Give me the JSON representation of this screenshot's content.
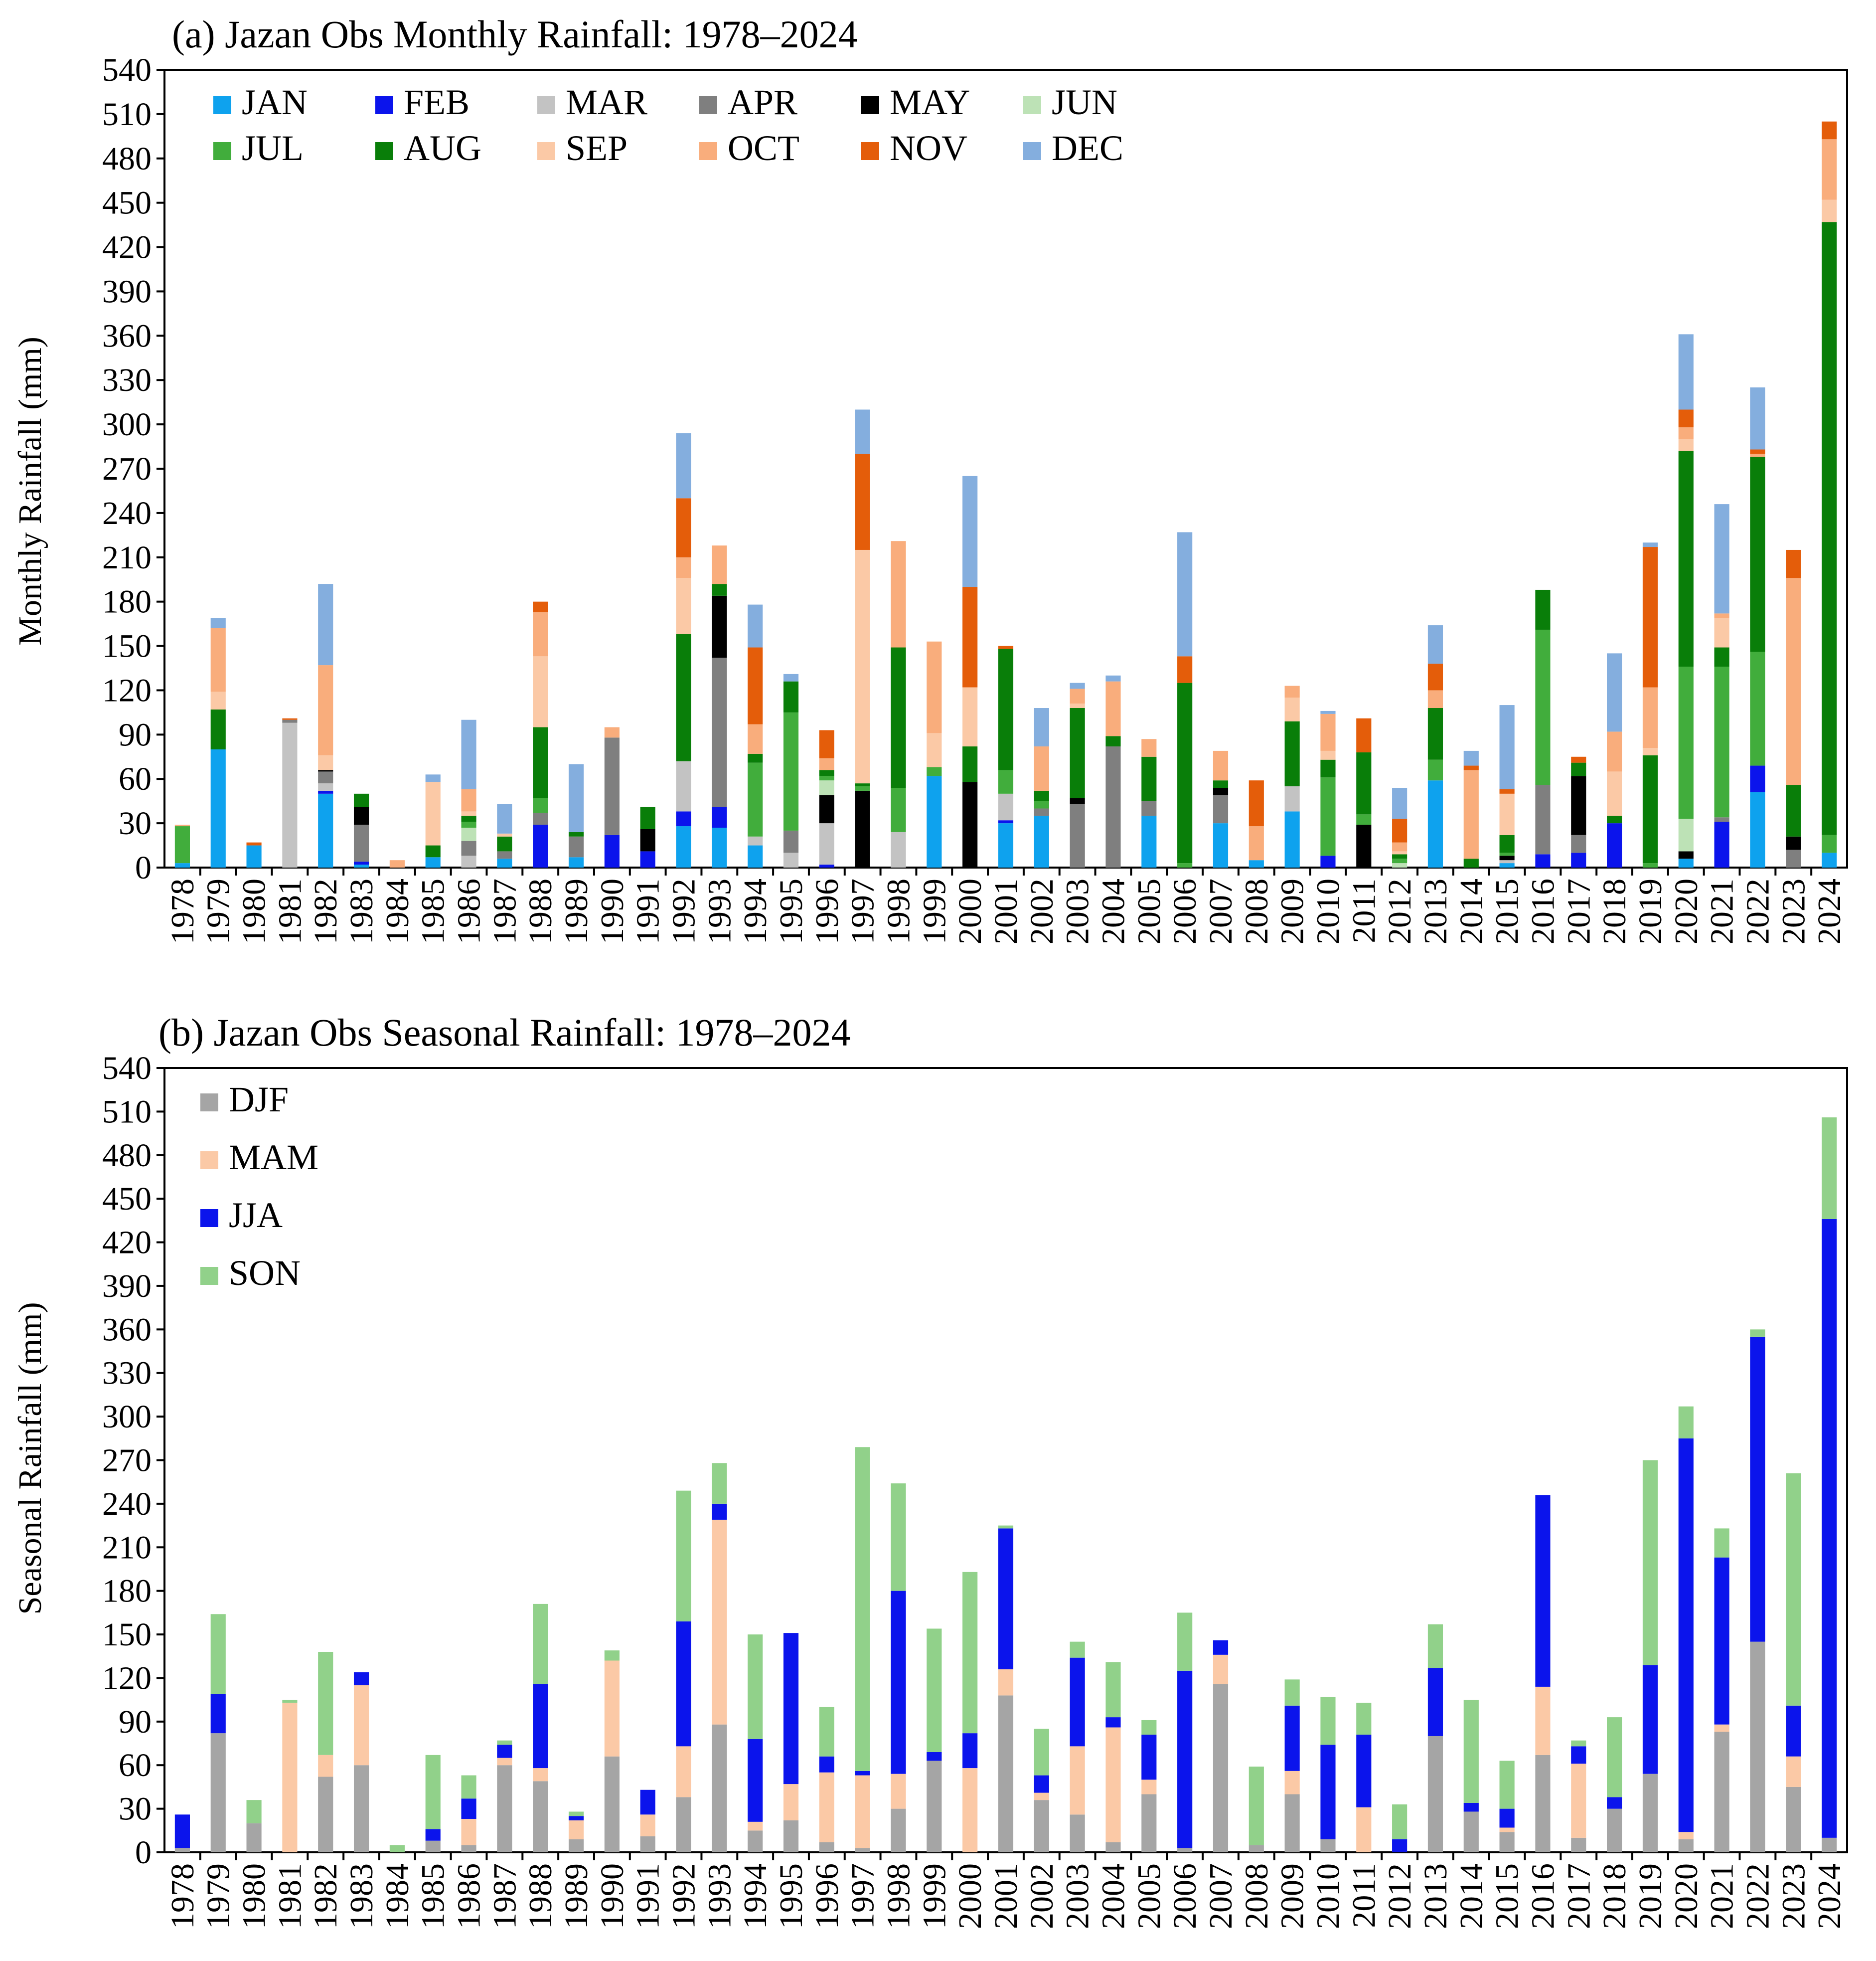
{
  "chart_data": [
    {
      "type": "bar",
      "stacked": true,
      "title": "(a) Jazan Obs Monthly Rainfall: 1978–2024",
      "xlabel": "",
      "ylabel": "Monthly Rainfall (mm)",
      "ylim": [
        0,
        540
      ],
      "yticks": [
        0,
        30,
        60,
        90,
        120,
        150,
        180,
        210,
        240,
        270,
        300,
        330,
        360,
        390,
        420,
        450,
        480,
        510,
        540
      ],
      "legend_position": "top-left",
      "categories": [
        "1978",
        "1979",
        "1980",
        "1981",
        "1982",
        "1983",
        "1984",
        "1985",
        "1986",
        "1987",
        "1988",
        "1989",
        "1990",
        "1991",
        "1992",
        "1993",
        "1994",
        "1995",
        "1996",
        "1997",
        "1998",
        "1999",
        "2000",
        "2001",
        "2002",
        "2003",
        "2004",
        "2005",
        "2006",
        "2007",
        "2008",
        "2009",
        "2010",
        "2011",
        "2012",
        "2013",
        "2014",
        "2015",
        "2016",
        "2017",
        "2018",
        "2019",
        "2020",
        "2021",
        "2022",
        "2023",
        "2024"
      ],
      "series": [
        {
          "name": "JAN",
          "color": "#0ea2ee",
          "values": [
            3,
            80,
            15,
            0,
            50,
            2,
            0,
            7,
            0,
            6,
            0,
            7,
            0,
            0,
            28,
            27,
            15,
            0,
            0,
            0,
            0,
            62,
            0,
            30,
            35,
            0,
            0,
            35,
            0,
            30,
            5,
            38,
            0,
            0,
            0,
            59,
            0,
            3,
            0,
            0,
            0,
            0,
            6,
            0,
            51,
            0,
            10
          ]
        },
        {
          "name": "FEB",
          "color": "#0b14ec",
          "values": [
            0,
            0,
            0,
            0,
            2,
            2,
            0,
            0,
            0,
            0,
            29,
            0,
            22,
            11,
            10,
            14,
            0,
            0,
            2,
            0,
            0,
            0,
            0,
            2,
            0,
            0,
            0,
            0,
            0,
            0,
            0,
            0,
            8,
            0,
            0,
            0,
            0,
            0,
            9,
            10,
            30,
            0,
            0,
            31,
            18,
            0,
            0
          ]
        },
        {
          "name": "MAR",
          "color": "#c3c3c3",
          "values": [
            0,
            0,
            0,
            98,
            5,
            0,
            0,
            0,
            8,
            0,
            0,
            0,
            0,
            0,
            34,
            0,
            6,
            10,
            28,
            0,
            24,
            0,
            0,
            18,
            0,
            0,
            0,
            0,
            0,
            0,
            0,
            17,
            0,
            0,
            0,
            0,
            0,
            2,
            0,
            0,
            0,
            0,
            0,
            0,
            0,
            0,
            0
          ]
        },
        {
          "name": "APR",
          "color": "#7f7f7f",
          "values": [
            0,
            0,
            0,
            2,
            8,
            25,
            0,
            0,
            10,
            5,
            8,
            14,
            66,
            0,
            0,
            101,
            0,
            15,
            0,
            0,
            0,
            0,
            0,
            0,
            5,
            43,
            82,
            10,
            0,
            19,
            0,
            0,
            0,
            0,
            0,
            0,
            0,
            0,
            47,
            12,
            0,
            0,
            0,
            3,
            0,
            12,
            0
          ]
        },
        {
          "name": "MAY",
          "color": "#000000",
          "values": [
            0,
            0,
            0,
            0,
            1,
            12,
            0,
            0,
            0,
            0,
            0,
            0,
            0,
            15,
            0,
            42,
            0,
            0,
            19,
            52,
            0,
            0,
            58,
            0,
            0,
            4,
            0,
            0,
            0,
            5,
            0,
            0,
            0,
            29,
            0,
            0,
            0,
            3,
            0,
            40,
            0,
            0,
            5,
            0,
            0,
            9,
            0
          ]
        },
        {
          "name": "JUN",
          "color": "#bde2b6",
          "values": [
            0,
            0,
            0,
            0,
            0,
            0,
            0,
            0,
            9,
            0,
            0,
            0,
            0,
            0,
            0,
            0,
            0,
            0,
            10,
            0,
            0,
            0,
            0,
            0,
            0,
            0,
            0,
            0,
            0,
            0,
            0,
            0,
            0,
            0,
            3,
            0,
            0,
            0,
            0,
            0,
            0,
            0,
            22,
            0,
            0,
            0,
            0
          ]
        },
        {
          "name": "JUL",
          "color": "#41ad3c",
          "values": [
            25,
            0,
            0,
            0,
            0,
            0,
            0,
            0,
            4,
            0,
            10,
            0,
            0,
            0,
            0,
            0,
            50,
            80,
            3,
            3,
            30,
            6,
            0,
            16,
            5,
            0,
            0,
            0,
            3,
            0,
            0,
            0,
            53,
            7,
            3,
            14,
            0,
            2,
            105,
            0,
            0,
            3,
            103,
            102,
            77,
            0,
            12
          ]
        },
        {
          "name": "AUG",
          "color": "#097e09",
          "values": [
            0,
            27,
            0,
            0,
            0,
            9,
            0,
            8,
            4,
            10,
            48,
            3,
            0,
            15,
            86,
            8,
            6,
            21,
            4,
            2,
            95,
            0,
            24,
            82,
            7,
            61,
            7,
            30,
            122,
            5,
            0,
            44,
            12,
            42,
            3,
            35,
            6,
            12,
            27,
            9,
            5,
            73,
            146,
            13,
            132,
            35,
            415
          ]
        },
        {
          "name": "SEP",
          "color": "#fbc9a6",
          "values": [
            0,
            12,
            0,
            0,
            10,
            0,
            0,
            43,
            3,
            2,
            48,
            0,
            0,
            0,
            38,
            0,
            0,
            0,
            0,
            158,
            0,
            23,
            40,
            0,
            0,
            3,
            0,
            0,
            0,
            0,
            0,
            16,
            6,
            0,
            2,
            0,
            0,
            28,
            0,
            0,
            30,
            5,
            8,
            20,
            0,
            0,
            15
          ]
        },
        {
          "name": "OCT",
          "color": "#f9ad7c",
          "values": [
            1,
            43,
            0,
            0,
            61,
            0,
            5,
            0,
            15,
            0,
            30,
            0,
            7,
            0,
            14,
            26,
            20,
            0,
            8,
            0,
            72,
            62,
            0,
            0,
            30,
            10,
            37,
            12,
            0,
            20,
            23,
            8,
            25,
            0,
            6,
            12,
            60,
            0,
            0,
            0,
            27,
            41,
            8,
            3,
            2,
            140,
            41
          ]
        },
        {
          "name": "NOV",
          "color": "#e45d0a",
          "values": [
            0,
            0,
            2,
            1,
            0,
            0,
            0,
            0,
            0,
            0,
            7,
            0,
            0,
            0,
            40,
            0,
            52,
            0,
            19,
            65,
            0,
            0,
            68,
            2,
            0,
            0,
            0,
            0,
            18,
            0,
            31,
            0,
            0,
            23,
            16,
            18,
            3,
            3,
            0,
            4,
            0,
            95,
            12,
            0,
            3,
            19,
            12
          ]
        },
        {
          "name": "DEC",
          "color": "#84aede",
          "values": [
            0,
            7,
            0,
            0,
            55,
            0,
            0,
            5,
            47,
            20,
            0,
            46,
            0,
            0,
            44,
            0,
            29,
            5,
            0,
            30,
            0,
            0,
            75,
            0,
            26,
            4,
            4,
            0,
            84,
            0,
            0,
            0,
            2,
            0,
            21,
            26,
            10,
            57,
            0,
            0,
            53,
            3,
            51,
            74,
            42,
            0,
            0
          ]
        }
      ]
    },
    {
      "type": "bar",
      "stacked": true,
      "title": "(b) Jazan Obs Seasonal Rainfall: 1978–2024",
      "xlabel": "",
      "ylabel": "Seasonal Rainfall (mm)",
      "ylim": [
        0,
        540
      ],
      "yticks": [
        0,
        30,
        60,
        90,
        120,
        150,
        180,
        210,
        240,
        270,
        300,
        330,
        360,
        390,
        420,
        450,
        480,
        510,
        540
      ],
      "legend_position": "top-left",
      "categories": [
        "1978",
        "1979",
        "1980",
        "1981",
        "1982",
        "1983",
        "1984",
        "1985",
        "1986",
        "1987",
        "1988",
        "1989",
        "1990",
        "1991",
        "1992",
        "1993",
        "1994",
        "1995",
        "1996",
        "1997",
        "1998",
        "1999",
        "2000",
        "2001",
        "2002",
        "2003",
        "2004",
        "2005",
        "2006",
        "2007",
        "2008",
        "2009",
        "2010",
        "2011",
        "2012",
        "2013",
        "2014",
        "2015",
        "2016",
        "2017",
        "2018",
        "2019",
        "2020",
        "2021",
        "2022",
        "2023",
        "2024"
      ],
      "series": [
        {
          "name": "DJF",
          "color": "#a5a5a5",
          "values": [
            3,
            82,
            20,
            0,
            52,
            60,
            0,
            8,
            5,
            60,
            49,
            9,
            66,
            11,
            38,
            88,
            15,
            22,
            7,
            3,
            30,
            63,
            0,
            108,
            36,
            26,
            7,
            40,
            3,
            116,
            5,
            40,
            9,
            0,
            0,
            80,
            28,
            14,
            67,
            10,
            30,
            54,
            9,
            83,
            145,
            45,
            10
          ]
        },
        {
          "name": "MAM",
          "color": "#fbc9a6",
          "values": [
            0,
            0,
            0,
            103,
            15,
            55,
            0,
            0,
            18,
            5,
            9,
            13,
            66,
            15,
            35,
            141,
            6,
            25,
            48,
            50,
            24,
            0,
            58,
            18,
            5,
            47,
            79,
            10,
            0,
            20,
            0,
            16,
            0,
            31,
            0,
            0,
            0,
            3,
            47,
            51,
            0,
            0,
            5,
            5,
            0,
            21,
            0
          ]
        },
        {
          "name": "JJA",
          "color": "#0b14ec",
          "values": [
            23,
            27,
            0,
            0,
            0,
            9,
            0,
            8,
            14,
            9,
            58,
            3,
            0,
            17,
            86,
            11,
            57,
            104,
            11,
            3,
            126,
            6,
            24,
            97,
            12,
            61,
            7,
            31,
            122,
            10,
            0,
            45,
            65,
            50,
            9,
            47,
            6,
            13,
            132,
            12,
            8,
            75,
            271,
            115,
            210,
            35,
            426
          ]
        },
        {
          "name": "SON",
          "color": "#91d18a",
          "values": [
            0,
            55,
            16,
            2,
            71,
            0,
            5,
            51,
            16,
            3,
            55,
            3,
            7,
            0,
            90,
            28,
            72,
            0,
            34,
            223,
            74,
            85,
            111,
            2,
            32,
            11,
            38,
            10,
            40,
            0,
            54,
            18,
            33,
            22,
            24,
            30,
            71,
            33,
            0,
            4,
            55,
            141,
            22,
            20,
            5,
            160,
            70
          ]
        }
      ]
    }
  ]
}
